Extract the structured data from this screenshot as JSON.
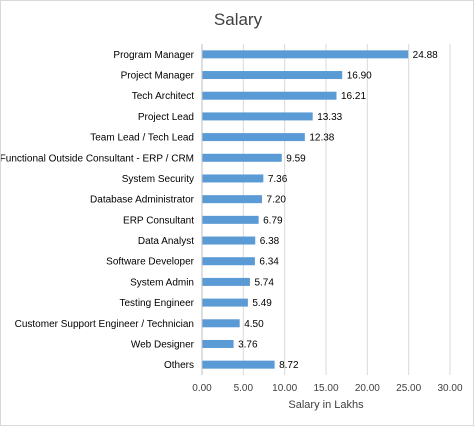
{
  "chart_data": {
    "type": "bar",
    "orientation": "horizontal",
    "title": "Salary",
    "xlabel": "Salary in Lakhs",
    "ylabel": "",
    "categories": [
      "Program Manager",
      "Project Manager",
      "Tech Architect",
      "Project Lead",
      "Team Lead / Tech Lead",
      "Functional Outside Consultant - ERP / CRM",
      "System Security",
      "Database Administrator",
      "ERP Consultant",
      "Data Analyst",
      "Software Developer",
      "System Admin",
      "Testing Engineer",
      "Customer Support Engineer / Technician",
      "Web Designer",
      "Others"
    ],
    "values": [
      24.88,
      16.9,
      16.21,
      13.33,
      12.38,
      9.59,
      7.36,
      7.2,
      6.79,
      6.38,
      6.34,
      5.74,
      5.49,
      4.5,
      3.76,
      8.72
    ],
    "data_labels": [
      "24.88",
      "16.90",
      "16.21",
      "13.33",
      "12.38",
      "9.59",
      "7.36",
      "7.20",
      "6.79",
      "6.38",
      "6.34",
      "5.74",
      "5.49",
      "4.50",
      "3.76",
      "8.72"
    ],
    "xlim": [
      0,
      30
    ],
    "xticks": [
      "0.00",
      "5.00",
      "10.00",
      "15.00",
      "20.00",
      "25.00",
      "30.00"
    ],
    "grid": "vertical",
    "legend": "none",
    "bar_color": "#5b9bd5",
    "grid_color": "#d9d9d9"
  }
}
